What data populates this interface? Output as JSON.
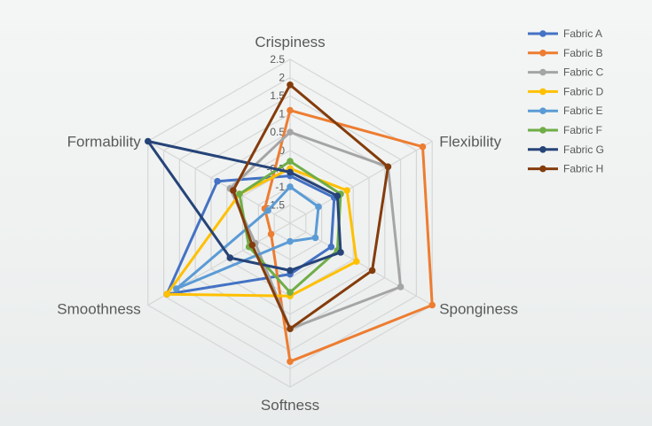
{
  "chart_data": {
    "type": "radar",
    "title": "",
    "axes": [
      "Crispiness",
      "Flexibility",
      "Sponginess",
      "Softness",
      "Smoothness",
      "Formability"
    ],
    "rlim": [
      -2,
      2.5
    ],
    "ticks": [
      "-1.5",
      "-1",
      "-0.5",
      "0",
      "0.5",
      "1",
      "1.5",
      "2",
      "2.5"
    ],
    "grid": true,
    "legend_position": "top-right",
    "series": [
      {
        "name": "Fabric A",
        "color": "#4472C4",
        "values": [
          -0.7,
          -0.6,
          -0.7,
          -0.6,
          1.9,
          0.3
        ]
      },
      {
        "name": "Fabric B",
        "color": "#ED7D31",
        "values": [
          1.1,
          2.2,
          2.5,
          1.8,
          -1.4,
          -1.2
        ]
      },
      {
        "name": "Fabric C",
        "color": "#A5A5A5",
        "values": [
          0.5,
          1.1,
          1.5,
          0.9,
          -0.9,
          -0.1
        ]
      },
      {
        "name": "Fabric D",
        "color": "#FFC000",
        "values": [
          -0.5,
          -0.2,
          0.1,
          0.0,
          1.9,
          -0.4
        ]
      },
      {
        "name": "Fabric E",
        "color": "#5B9BD5",
        "values": [
          -1.0,
          -1.1,
          -1.2,
          -1.5,
          1.6,
          -1.3
        ]
      },
      {
        "name": "Fabric F",
        "color": "#70AD47",
        "values": [
          -0.3,
          -0.4,
          -0.5,
          -0.1,
          -0.7,
          -0.4
        ]
      },
      {
        "name": "Fabric G",
        "color": "#264478",
        "values": [
          -0.6,
          -0.5,
          -0.4,
          -0.7,
          -0.1,
          2.5
        ]
      },
      {
        "name": "Fabric H",
        "color": "#843C0C",
        "values": [
          1.8,
          1.1,
          0.6,
          0.9,
          -0.8,
          -0.2
        ]
      }
    ]
  }
}
